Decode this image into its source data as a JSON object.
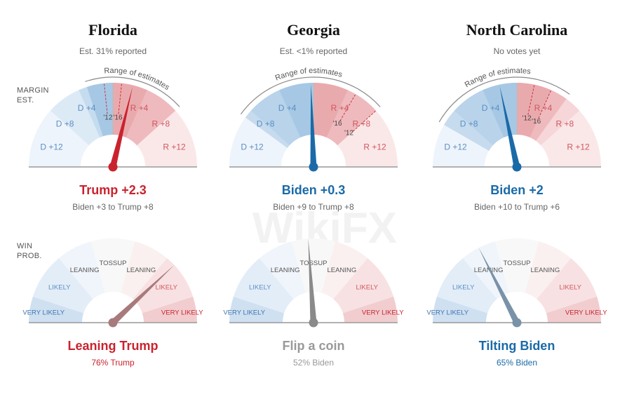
{
  "labels": {
    "margin_est_line1": "MARGIN",
    "margin_est_line2": "EST.",
    "win_prob_line1": "WIN",
    "win_prob_line2": "PROB.",
    "range_of_estimates": "Range of estimates",
    "watermark": "WikiFX"
  },
  "colors": {
    "dem": "#1a6aa8",
    "rep": "#c9232e",
    "dem_text": "#5b8fc4",
    "rep_text": "#d0575f",
    "gray": "#999999"
  },
  "chart_data": [
    {
      "type": "gauge",
      "state": "Florida",
      "reported": "Est. 31% reported",
      "margin": {
        "ticks": [
          "D +12",
          "D +8",
          "D +4",
          "R +4",
          "R +8",
          "R +12"
        ],
        "needle": 2.3,
        "range": [
          -3,
          8
        ],
        "history": [
          {
            "label": "'12",
            "value": -1
          },
          {
            "label": "'16",
            "value": 1
          }
        ],
        "headline": "Trump +2.3",
        "range_text": "Biden +3 to Trump +8",
        "needle_color": "#c9232e"
      },
      "probability": {
        "zones": [
          "VERY LIKELY",
          "LIKELY",
          "LEANING",
          "TOSSUP",
          "LEANING",
          "LIKELY",
          "VERY LIKELY"
        ],
        "needle_pct_rep": 76,
        "headline": "Leaning Trump",
        "sub": "76% Trump",
        "color": "#c9232e",
        "needle_color": "#a87a7c"
      }
    },
    {
      "type": "gauge",
      "state": "Georgia",
      "reported": "Est. <1% reported",
      "margin": {
        "ticks": [
          "D +12",
          "D +8",
          "D +4",
          "R +4",
          "R +8",
          "R +12"
        ],
        "needle": -0.3,
        "range": [
          -9,
          8
        ],
        "history": [
          {
            "label": "'16",
            "value": 5
          },
          {
            "label": "'12",
            "value": 8
          }
        ],
        "headline": "Biden +0.3",
        "range_text": "Biden +9 to Trump +8",
        "needle_color": "#1a6aa8"
      },
      "probability": {
        "zones": [
          "VERY LIKELY",
          "LIKELY",
          "LEANING",
          "TOSSUP",
          "LEANING",
          "LIKELY",
          "VERY LIKELY"
        ],
        "needle_pct_rep": 48,
        "headline": "Flip a coin",
        "sub": "52% Biden",
        "color": "#999999",
        "needle_color": "#8a8a8a"
      }
    },
    {
      "type": "gauge",
      "state": "North Carolina",
      "reported": "No votes yet",
      "margin": {
        "ticks": [
          "D +12",
          "D +8",
          "D +4",
          "R +4",
          "R +8",
          "R +12"
        ],
        "needle": -2,
        "range": [
          -10,
          6
        ],
        "history": [
          {
            "label": "'12",
            "value": 2
          },
          {
            "label": "'16",
            "value": 4
          }
        ],
        "headline": "Biden +2",
        "range_text": "Biden +10 to Trump +6",
        "needle_color": "#1a6aa8"
      },
      "probability": {
        "zones": [
          "VERY LIKELY",
          "LIKELY",
          "LEANING",
          "TOSSUP",
          "LEANING",
          "LIKELY",
          "VERY LIKELY"
        ],
        "needle_pct_rep": 35,
        "headline": "Tilting Biden",
        "sub": "65% Biden",
        "color": "#1a6aa8",
        "needle_color": "#7a92a8"
      }
    }
  ]
}
